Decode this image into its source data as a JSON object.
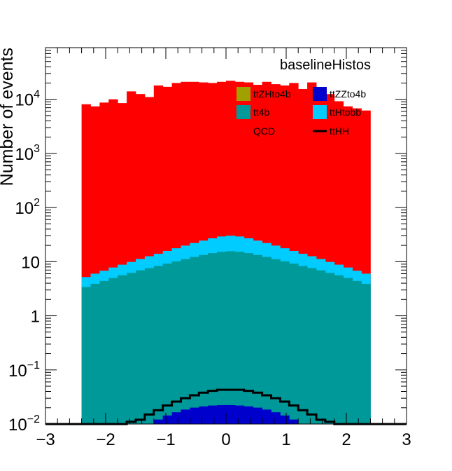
{
  "chart_data": {
    "type": "stacked-histogram",
    "title": "baselineHistos",
    "xlabel": "",
    "ylabel": "Number of events",
    "xlim": [
      -3,
      3
    ],
    "ylim": [
      0.01,
      90000
    ],
    "yscale": "log",
    "grid": false,
    "legend_placement": "top-right",
    "x_tick_labels": [
      "−3",
      "−2",
      "−1",
      "0",
      "1",
      "2",
      "3"
    ],
    "y_tick_labels": [
      {
        "base": "10",
        "exp": "−2",
        "value": 0.01
      },
      {
        "base": "10",
        "exp": "−1",
        "value": 0.1
      },
      {
        "base": "1",
        "exp": "",
        "value": 1
      },
      {
        "base": "10",
        "exp": "",
        "value": 10
      },
      {
        "base": "10",
        "exp": "2",
        "value": 100
      },
      {
        "base": "10",
        "exp": "3",
        "value": 1000
      },
      {
        "base": "10",
        "exp": "4",
        "value": 10000
      }
    ],
    "bin_edges": [
      -2.4,
      -2.25,
      -2.1,
      -1.95,
      -1.8,
      -1.65,
      -1.5,
      -1.35,
      -1.2,
      -1.05,
      -0.9,
      -0.75,
      -0.6,
      -0.45,
      -0.3,
      -0.15,
      0.0,
      0.15,
      0.3,
      0.45,
      0.6,
      0.75,
      0.9,
      1.05,
      1.2,
      1.35,
      1.5,
      1.65,
      1.8,
      1.95,
      2.1,
      2.25,
      2.4
    ],
    "stack_series": [
      {
        "name": "ttZHto4b",
        "color": "#a0a000",
        "values": [
          0.0008,
          0.0009,
          0.001,
          0.0011,
          0.0012,
          0.0013,
          0.0014,
          0.0015,
          0.0016,
          0.0017,
          0.0018,
          0.0019,
          0.002,
          0.002,
          0.0021,
          0.0021,
          0.0021,
          0.0021,
          0.002,
          0.002,
          0.0019,
          0.0018,
          0.0017,
          0.0016,
          0.0015,
          0.0014,
          0.0013,
          0.0012,
          0.0011,
          0.001,
          0.0009,
          0.0008
        ]
      },
      {
        "name": "ttZZto4b",
        "color": "#0000cc",
        "values": [
          0.0012,
          0.0016,
          0.0021,
          0.0027,
          0.0035,
          0.0047,
          0.0064,
          0.0085,
          0.0105,
          0.0127,
          0.0147,
          0.0166,
          0.0181,
          0.0192,
          0.0199,
          0.0203,
          0.0203,
          0.0199,
          0.0192,
          0.0181,
          0.0166,
          0.0147,
          0.0127,
          0.0105,
          0.0085,
          0.0064,
          0.0047,
          0.0035,
          0.0027,
          0.0021,
          0.0016,
          0.0012
        ]
      },
      {
        "name": "tt4b",
        "color": "#009999",
        "values": [
          3.4,
          3.9,
          4.4,
          5.0,
          5.6,
          6.2,
          6.9,
          7.6,
          8.3,
          9.2,
          10.1,
          11.1,
          12.2,
          13.3,
          14.4,
          15.2,
          15.6,
          15.2,
          14.4,
          13.3,
          12.2,
          11.1,
          10.1,
          9.2,
          8.3,
          7.6,
          6.9,
          6.2,
          5.6,
          5.0,
          4.4,
          3.9
        ]
      },
      {
        "name": "ttHtobb",
        "color": "#00ccff",
        "values": [
          1.8,
          2.1,
          2.4,
          2.8,
          3.2,
          3.7,
          4.3,
          5.0,
          5.7,
          6.6,
          7.6,
          8.7,
          9.9,
          11.2,
          12.6,
          14.0,
          14.5,
          14.0,
          12.6,
          11.2,
          9.9,
          8.7,
          7.6,
          6.6,
          5.7,
          5.0,
          4.3,
          3.7,
          3.2,
          2.8,
          2.4,
          2.1
        ]
      },
      {
        "name": "QCD",
        "color": "#ff0000",
        "values": [
          8100,
          7400,
          8700,
          10000,
          8500,
          14000,
          12500,
          11000,
          18000,
          17000,
          20000,
          21000,
          21000,
          20500,
          20000,
          21000,
          22000,
          21000,
          20500,
          18500,
          21000,
          19000,
          18000,
          20000,
          15500,
          20500,
          13500,
          12500,
          9200,
          7400,
          6800,
          6200
        ]
      }
    ],
    "overlay_series": [
      {
        "name": "ttHH",
        "color": "#000000",
        "style": "line",
        "values": [
          0.0,
          0.0,
          0.0,
          0.0,
          0.0,
          0.011,
          0.012,
          0.015,
          0.018,
          0.022,
          0.026,
          0.03,
          0.034,
          0.038,
          0.041,
          0.043,
          0.043,
          0.043,
          0.041,
          0.038,
          0.034,
          0.03,
          0.026,
          0.022,
          0.018,
          0.015,
          0.012,
          0.011,
          0.0,
          0.0,
          0.0,
          0.0
        ]
      }
    ]
  },
  "legend": {
    "items": [
      {
        "label": "ttZHto4b",
        "color": "#a0a000",
        "type": "box"
      },
      {
        "label": "ttZZto4b",
        "color": "#0000cc",
        "type": "box"
      },
      {
        "label": "tt4b",
        "color": "#009999",
        "type": "box"
      },
      {
        "label": "ttHtobb",
        "color": "#00ccff",
        "type": "box"
      },
      {
        "label": "QCD",
        "color": "#ff0000",
        "type": "none"
      },
      {
        "label": "ttHH",
        "color": "#000000",
        "type": "line"
      }
    ]
  }
}
